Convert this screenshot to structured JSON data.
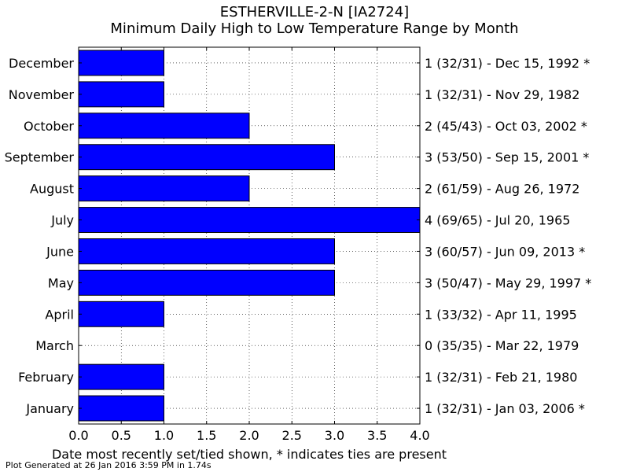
{
  "chart_data": {
    "type": "bar",
    "orientation": "horizontal",
    "title": "ESTHERVILLE-2-N [IA2724]",
    "subtitle": "Minimum Daily High to Low Temperature Range by Month",
    "xlabel": "Date most recently set/tied shown, * indicates ties are present",
    "ylabel": "",
    "xlim": [
      0,
      4
    ],
    "xticks": [
      "0.0",
      "0.5",
      "1.0",
      "1.5",
      "2.0",
      "2.5",
      "3.0",
      "3.5",
      "4.0"
    ],
    "grid": true,
    "bar_color": "#0000ff",
    "categories": [
      "January",
      "February",
      "March",
      "April",
      "May",
      "June",
      "July",
      "August",
      "September",
      "October",
      "November",
      "December"
    ],
    "values": [
      1,
      1,
      0,
      1,
      3,
      3,
      4,
      2,
      3,
      2,
      1,
      1
    ],
    "right_labels": [
      "1 (32/31) - Jan 03, 2006 *",
      "1 (32/31) - Feb 21, 1980",
      "0 (35/35) - Mar 22, 1979",
      "1 (33/32) - Apr 11, 1995",
      "3 (50/47) - May 29, 1997 *",
      "3 (60/57) - Jun 09, 2013 *",
      "4 (69/65) - Jul 20, 1965",
      "2 (61/59) - Aug 26, 1972",
      "3 (53/50) - Sep 15, 2001 *",
      "2 (45/43) - Oct 03, 2002 *",
      "1 (32/31) - Nov 29, 1982",
      "1 (32/31) - Dec 15, 1992 *"
    ]
  },
  "footer": "Plot Generated at 26 Jan 2016 3:59 PM in 1.74s"
}
